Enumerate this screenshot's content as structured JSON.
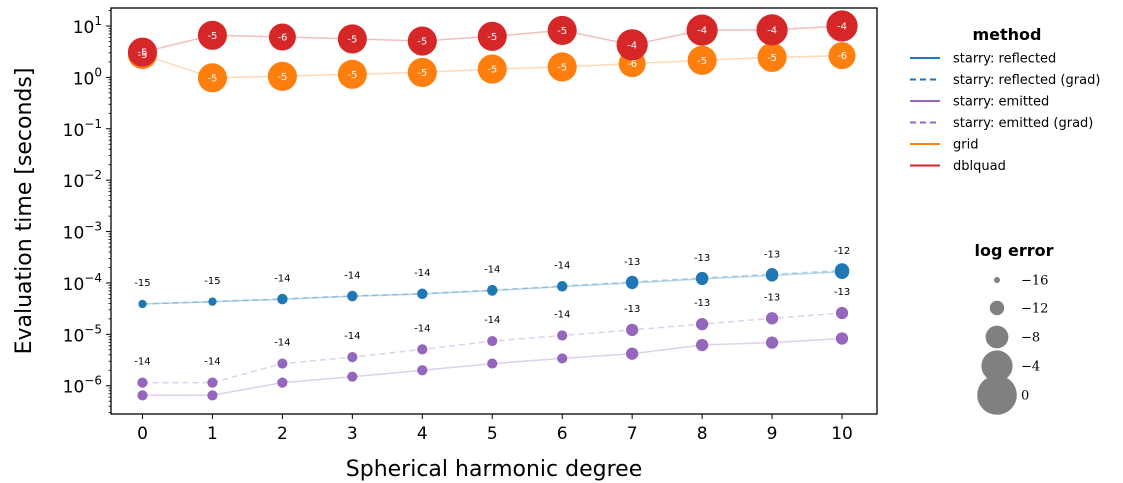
{
  "chart_data": {
    "type": "line",
    "xlabel": "Spherical harmonic degree",
    "ylabel": "Evaluation time [seconds]",
    "x": [
      0,
      1,
      2,
      3,
      4,
      5,
      6,
      7,
      8,
      9,
      10
    ],
    "xlim": [
      -0.45,
      10.5
    ],
    "ylim_log10": [
      -6.55,
      1.35
    ],
    "yticks": [
      {
        "base": "10",
        "exp": "1",
        "log": 1
      },
      {
        "base": "10",
        "exp": "0",
        "log": 0
      },
      {
        "base": "10",
        "exp": "−1",
        "log": -1
      },
      {
        "base": "10",
        "exp": "−2",
        "log": -2
      },
      {
        "base": "10",
        "exp": "−3",
        "log": -3
      },
      {
        "base": "10",
        "exp": "−4",
        "log": -4
      },
      {
        "base": "10",
        "exp": "−5",
        "log": -5
      },
      {
        "base": "10",
        "exp": "−6",
        "log": -6
      }
    ],
    "xticks": [
      "0",
      "1",
      "2",
      "3",
      "4",
      "5",
      "6",
      "7",
      "8",
      "9",
      "10"
    ],
    "series": [
      {
        "name": "starry: reflected",
        "color": "#1f77b4",
        "dashed": false,
        "label_mode": "above",
        "values": [
          3.9e-05,
          4.3e-05,
          4.8e-05,
          5.5e-05,
          6.1e-05,
          7.1e-05,
          8.5e-05,
          0.0001,
          0.00012,
          0.00014,
          0.000165
        ],
        "log_error": [
          -15,
          -15,
          -14,
          -14,
          -14,
          -14,
          -14,
          -13,
          -13,
          -13,
          -12
        ]
      },
      {
        "name": "starry: reflected (grad)",
        "color": "#1f77b4",
        "dashed": true,
        "label_mode": "none",
        "values": [
          3.9e-05,
          4.35e-05,
          4.9e-05,
          5.6e-05,
          6.2e-05,
          7.3e-05,
          8.7e-05,
          0.000105,
          0.000125,
          0.000148,
          0.000175
        ],
        "log_error": [
          -15,
          -15,
          -14,
          -14,
          -14,
          -14,
          -14,
          -13,
          -13,
          -13,
          -12
        ]
      },
      {
        "name": "starry: emitted",
        "color": "#9467bd",
        "dashed": false,
        "label_mode": "none",
        "values": [
          6.5e-07,
          6.5e-07,
          1.15e-06,
          1.5e-06,
          2e-06,
          2.7e-06,
          3.4e-06,
          4.2e-06,
          6.2e-06,
          6.9e-06,
          8.3e-06
        ],
        "log_error": [
          -14,
          -14,
          -14,
          -14,
          -14,
          -14,
          -14,
          -13,
          -13,
          -13,
          -13
        ]
      },
      {
        "name": "starry: emitted (grad)",
        "color": "#9467bd",
        "dashed": true,
        "label_mode": "above",
        "values": [
          1.15e-06,
          1.15e-06,
          2.7e-06,
          3.6e-06,
          5.1e-06,
          7.4e-06,
          9.5e-06,
          1.22e-05,
          1.58e-05,
          2.05e-05,
          2.6e-05
        ],
        "log_error": [
          -14,
          -14,
          -14,
          -14,
          -14,
          -14,
          -14,
          -13,
          -13,
          -13,
          -13
        ]
      },
      {
        "name": "grid",
        "color": "#ff7f0e",
        "dashed": false,
        "label_mode": "inside",
        "values": [
          2.8,
          0.98,
          1.05,
          1.15,
          1.25,
          1.45,
          1.6,
          1.85,
          2.15,
          2.45,
          2.65
        ],
        "log_error": [
          -5,
          -5,
          -5,
          -5,
          -5,
          -5,
          -5,
          -6,
          -5,
          -5,
          -6
        ]
      },
      {
        "name": "dblquad",
        "color": "#d62728",
        "dashed": false,
        "label_mode": "inside",
        "values": [
          3.1,
          6.6,
          6.1,
          5.6,
          5.1,
          6.3,
          8.2,
          4.3,
          8.3,
          8.4,
          10.0
        ],
        "log_error": [
          -5,
          -5,
          -6,
          -5,
          -5,
          -5,
          -5,
          -4,
          -4,
          -4,
          -4
        ]
      }
    ],
    "legend": {
      "title": "method",
      "placement": "right",
      "entries": [
        {
          "label": "starry: reflected",
          "color": "#1f77b4",
          "dashed": false
        },
        {
          "label": "starry: reflected (grad)",
          "color": "#1f77b4",
          "dashed": true
        },
        {
          "label": "starry: emitted",
          "color": "#9467bd",
          "dashed": false
        },
        {
          "label": "starry: emitted (grad)",
          "color": "#9467bd",
          "dashed": true
        },
        {
          "label": "grid",
          "color": "#ff7f0e",
          "dashed": false
        },
        {
          "label": "dblquad",
          "color": "#d62728",
          "dashed": false
        }
      ]
    },
    "size_legend": {
      "title": "log error",
      "entries": [
        {
          "label": "−16",
          "value": -16
        },
        {
          "label": "−12",
          "value": -12
        },
        {
          "label": "−8",
          "value": -8
        },
        {
          "label": "−4",
          "value": -4
        },
        {
          "label": "0",
          "value": 0
        }
      ]
    }
  }
}
